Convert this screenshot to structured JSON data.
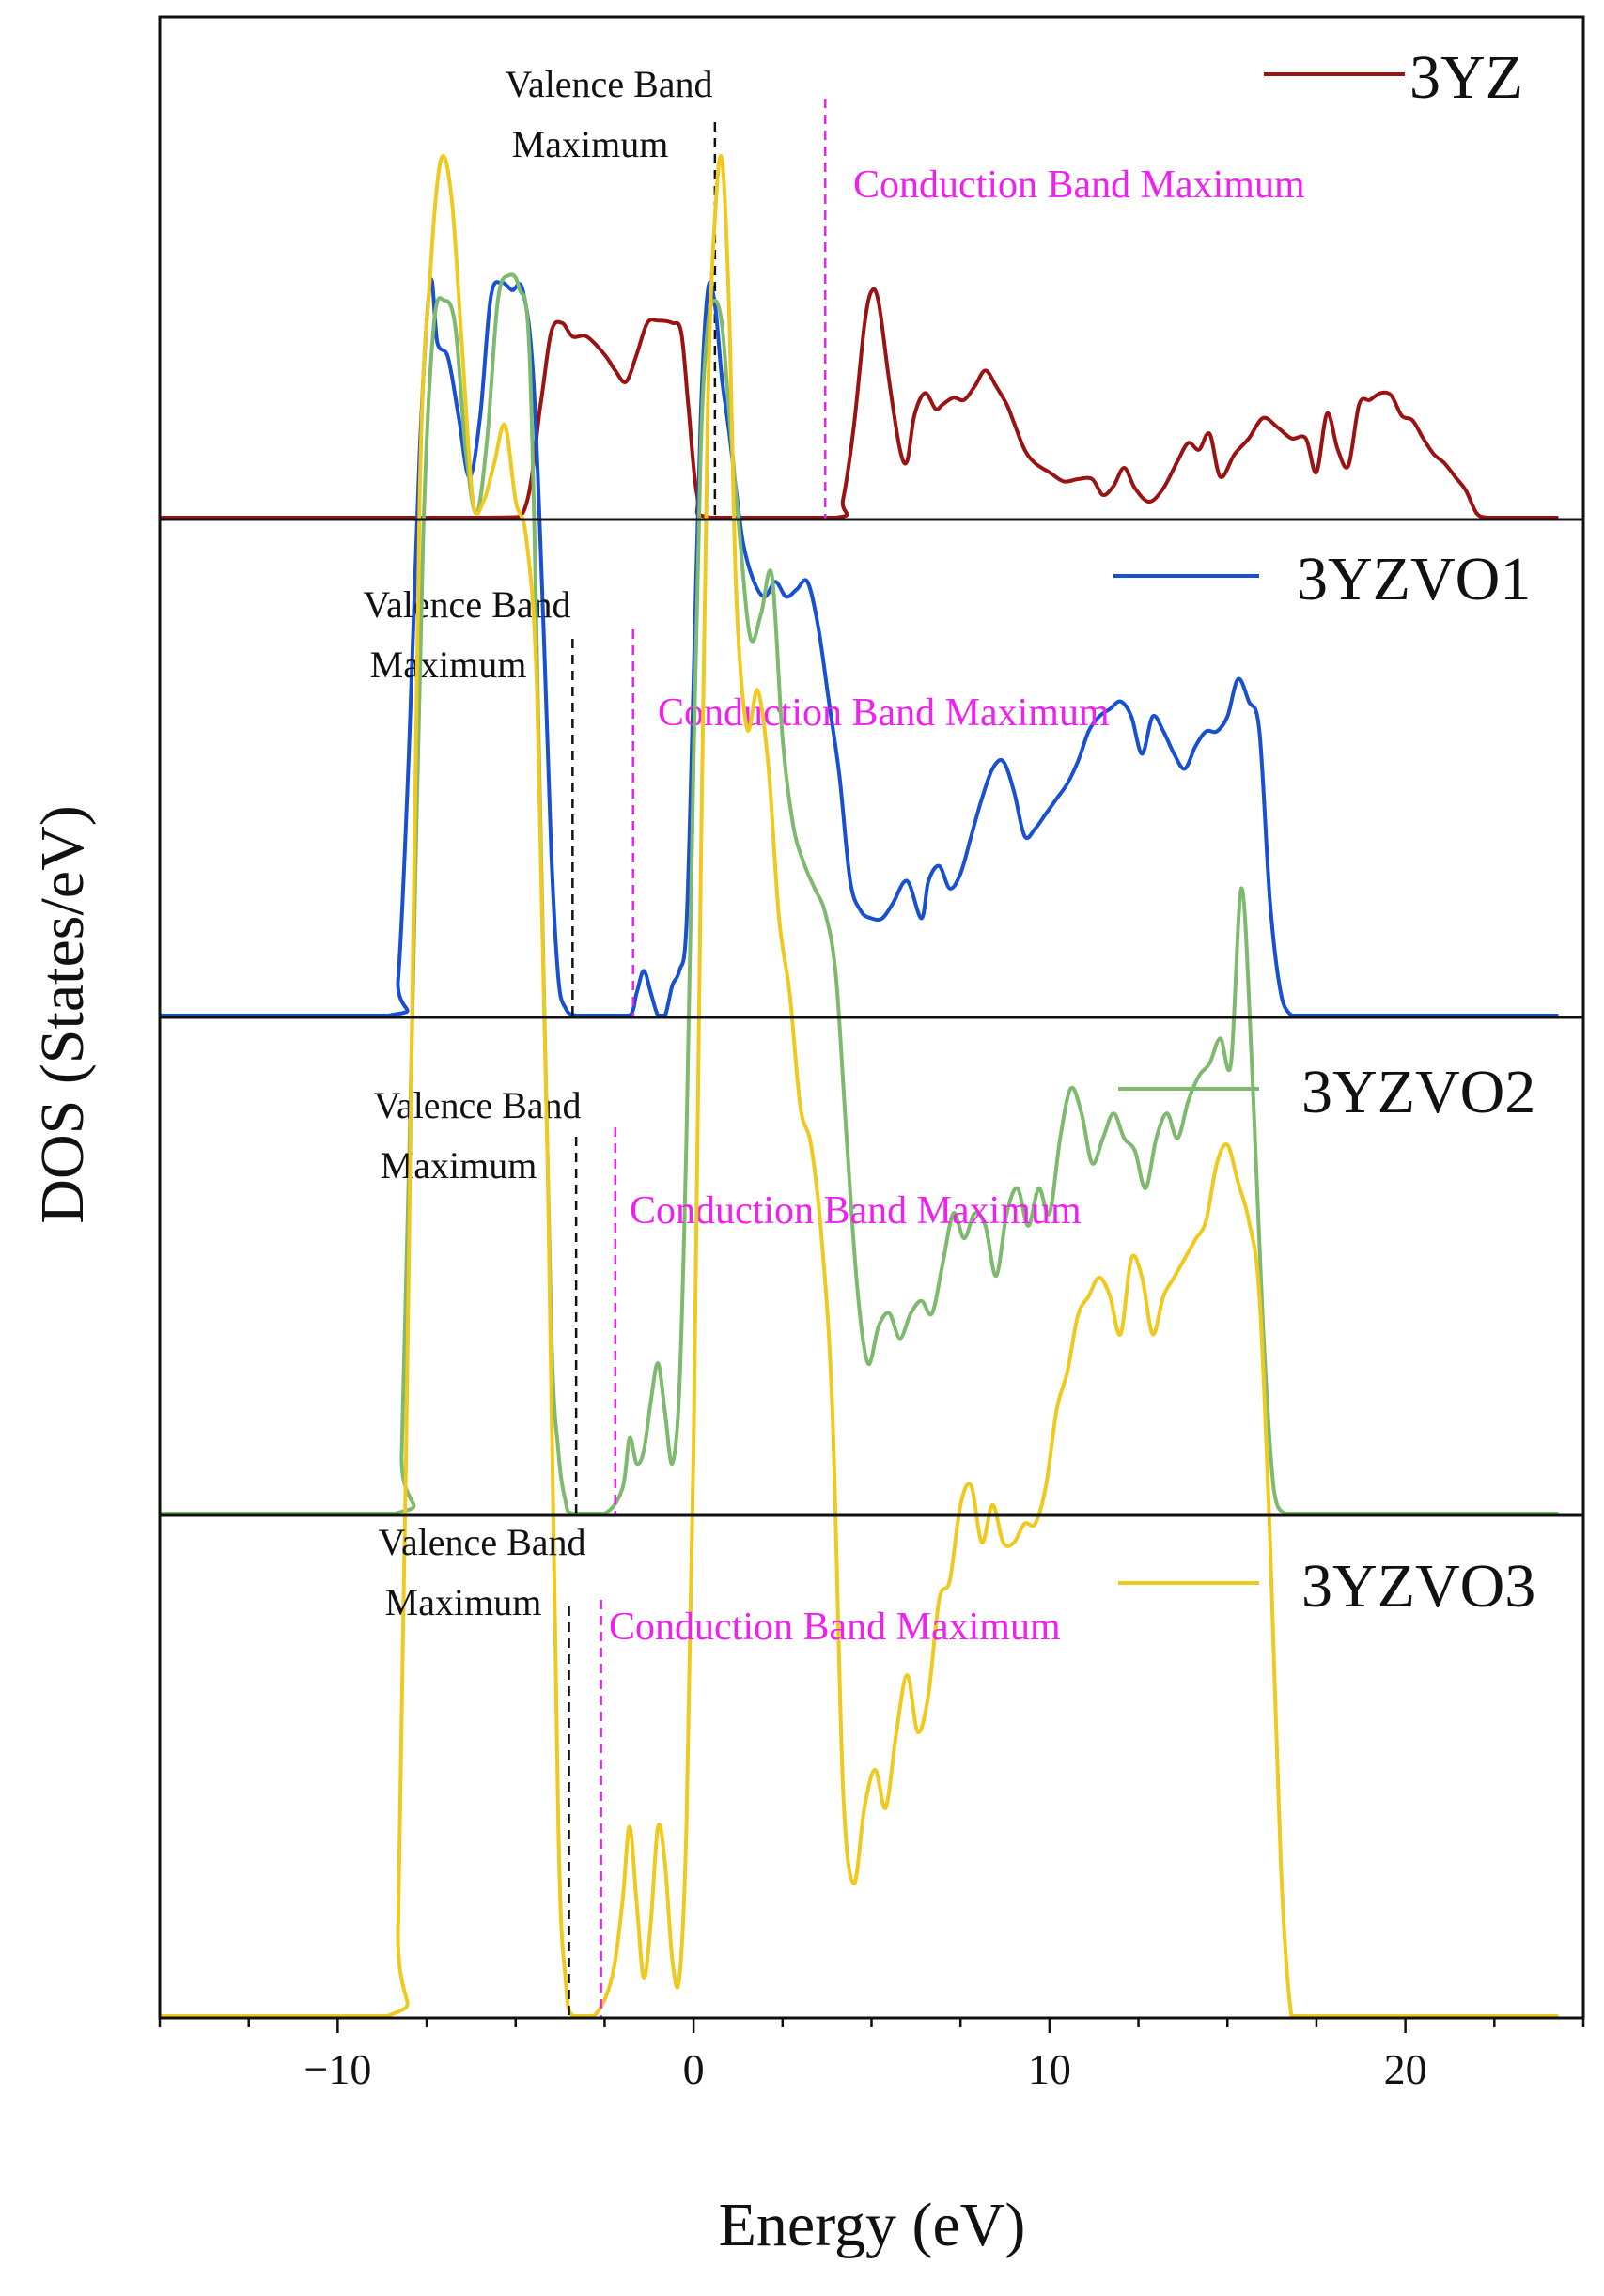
{
  "chart_data": {
    "type": "line",
    "xlabel": "Energy (eV)",
    "ylabel": "DOS (States/eV)",
    "xlim": [
      -15,
      25
    ],
    "xticks": [
      -10,
      0,
      10,
      20
    ],
    "xtick_labels": [
      "−10",
      "0",
      "10",
      "20"
    ],
    "yticks_shown": false,
    "panels": [
      {
        "name": "3YZ",
        "color": "#9b1212",
        "vbm_label_line1": "Valence Band",
        "vbm_label_line2": "Maximum",
        "cbm_label": "Conduction Band Maximum",
        "cbm_color": "#ee22ee",
        "vbm_energy": 0.6,
        "cbm_energy": 3.7,
        "x": [
          -15,
          -6,
          -4.8,
          -4.3,
          -4.0,
          -3.7,
          -3.4,
          -3.0,
          -2.5,
          -2.2,
          -1.9,
          -1.6,
          -1.3,
          -1.0,
          -0.6,
          -0.35,
          -0.15,
          0.1,
          0.5,
          4.0,
          4.2,
          4.5,
          4.8,
          5.0,
          5.2,
          5.5,
          5.8,
          6.0,
          6.2,
          6.5,
          6.8,
          7.0,
          7.3,
          7.6,
          7.9,
          8.2,
          8.5,
          8.8,
          9.0,
          9.3,
          9.6,
          10.0,
          10.4,
          10.8,
          11.2,
          11.5,
          11.8,
          12.1,
          12.4,
          12.8,
          13.2,
          13.6,
          13.9,
          14.2,
          14.5,
          14.8,
          15.2,
          15.6,
          16.0,
          16.4,
          16.8,
          17.2,
          17.5,
          17.8,
          18.1,
          18.4,
          18.7,
          19.0,
          19.3,
          19.6,
          19.9,
          20.2,
          20.5,
          20.8,
          21.1,
          21.4,
          21.7,
          22.0,
          22.3,
          22.6,
          23.0,
          24.3
        ],
        "y": [
          0,
          0,
          0.02,
          0.5,
          0.82,
          0.86,
          0.8,
          0.8,
          0.72,
          0.65,
          0.6,
          0.72,
          0.86,
          0.87,
          0.86,
          0.82,
          0.5,
          0.1,
          0,
          0,
          0.08,
          0.4,
          0.85,
          1.0,
          0.95,
          0.6,
          0.3,
          0.25,
          0.45,
          0.55,
          0.48,
          0.5,
          0.53,
          0.52,
          0.58,
          0.65,
          0.58,
          0.5,
          0.42,
          0.3,
          0.24,
          0.2,
          0.16,
          0.17,
          0.17,
          0.1,
          0.14,
          0.22,
          0.13,
          0.07,
          0.13,
          0.25,
          0.33,
          0.3,
          0.37,
          0.18,
          0.28,
          0.35,
          0.44,
          0.4,
          0.35,
          0.35,
          0.2,
          0.46,
          0.3,
          0.23,
          0.5,
          0.52,
          0.55,
          0.54,
          0.45,
          0.43,
          0.35,
          0.28,
          0.24,
          0.18,
          0.12,
          0.02,
          0,
          0,
          0,
          0
        ],
        "y_max": 1.0
      },
      {
        "name": "3YZVO1",
        "color": "#1750d0",
        "vbm_label_line1": "Valence Band",
        "vbm_label_line2": "Maximum",
        "cbm_label": "Conduction Band Maximum",
        "cbm_color": "#ee22ee",
        "vbm_energy": -3.4,
        "cbm_energy": -1.7,
        "x": [
          -15,
          -8.6,
          -8.3,
          -8.0,
          -7.7,
          -7.4,
          -7.2,
          -6.9,
          -6.6,
          -6.3,
          -6.0,
          -5.7,
          -5.4,
          -5.1,
          -4.8,
          -4.5,
          -4.2,
          -4.0,
          -3.8,
          -3.6,
          -3.3,
          -2.5,
          -1.8,
          -1.6,
          -1.4,
          -1.2,
          -1.0,
          -0.8,
          -0.6,
          -0.4,
          -0.2,
          0.0,
          0.2,
          0.4,
          0.6,
          0.8,
          1.0,
          1.2,
          1.4,
          1.7,
          2.0,
          2.3,
          2.6,
          2.9,
          3.2,
          3.5,
          3.8,
          4.1,
          4.4,
          4.7,
          5.0,
          5.3,
          5.6,
          6.0,
          6.4,
          6.6,
          6.9,
          7.2,
          7.5,
          7.8,
          8.1,
          8.4,
          8.7,
          9.0,
          9.3,
          9.6,
          9.9,
          10.2,
          10.5,
          10.8,
          11.1,
          11.4,
          11.7,
          12.0,
          12.3,
          12.6,
          12.9,
          13.2,
          13.5,
          13.8,
          14.1,
          14.4,
          14.7,
          15.0,
          15.3,
          15.6,
          15.9,
          16.2,
          16.5,
          16.8,
          17.0,
          17.3,
          17.6,
          17.9,
          18.2,
          24.3
        ],
        "y": [
          0,
          0,
          0.05,
          0.35,
          0.75,
          0.98,
          0.9,
          0.88,
          0.8,
          0.72,
          0.8,
          0.96,
          0.98,
          0.97,
          0.97,
          0.85,
          0.5,
          0.22,
          0.05,
          0.01,
          0,
          0,
          0,
          0.03,
          0.06,
          0.03,
          0,
          0,
          0.04,
          0.06,
          0.12,
          0.45,
          0.8,
          0.97,
          0.95,
          0.85,
          0.78,
          0.7,
          0.63,
          0.58,
          0.56,
          0.58,
          0.56,
          0.57,
          0.58,
          0.52,
          0.42,
          0.32,
          0.18,
          0.14,
          0.13,
          0.13,
          0.15,
          0.18,
          0.13,
          0.18,
          0.2,
          0.17,
          0.19,
          0.24,
          0.29,
          0.33,
          0.34,
          0.3,
          0.24,
          0.25,
          0.27,
          0.29,
          0.31,
          0.34,
          0.38,
          0.4,
          0.41,
          0.42,
          0.4,
          0.35,
          0.4,
          0.38,
          0.35,
          0.33,
          0.36,
          0.38,
          0.38,
          0.4,
          0.45,
          0.42,
          0.38,
          0.15,
          0.03,
          0,
          0,
          0,
          0,
          0,
          0,
          0
        ],
        "y_max": 1.0
      },
      {
        "name": "3YZVO2",
        "color": "#7dba6e",
        "vbm_label_line1": "Valence Band",
        "vbm_label_line2": "Maximum",
        "cbm_label": "Conduction Band Maximum",
        "cbm_color": "#ee22ee",
        "vbm_energy": -3.3,
        "cbm_energy": -2.2,
        "x": [
          -15,
          -8.4,
          -8.2,
          -7.9,
          -7.6,
          -7.3,
          -7.0,
          -6.7,
          -6.4,
          -6.1,
          -5.8,
          -5.5,
          -5.2,
          -4.9,
          -4.6,
          -4.3,
          -4.0,
          -3.8,
          -3.6,
          -3.4,
          -2.5,
          -2.0,
          -1.8,
          -1.6,
          -1.4,
          -1.2,
          -1.0,
          -0.8,
          -0.6,
          -0.4,
          -0.2,
          0.0,
          0.2,
          0.4,
          0.6,
          0.8,
          1.0,
          1.3,
          1.6,
          1.9,
          2.2,
          2.5,
          2.8,
          3.1,
          3.4,
          3.7,
          4.0,
          4.3,
          4.6,
          4.9,
          5.2,
          5.5,
          5.8,
          6.1,
          6.4,
          6.7,
          7.0,
          7.3,
          7.6,
          7.9,
          8.2,
          8.5,
          8.8,
          9.1,
          9.4,
          9.7,
          10.0,
          10.3,
          10.6,
          10.9,
          11.2,
          11.5,
          11.8,
          12.1,
          12.4,
          12.7,
          13.0,
          13.3,
          13.6,
          13.9,
          14.2,
          14.5,
          14.8,
          15.1,
          15.4,
          15.7,
          16.0,
          16.3,
          16.6,
          16.9,
          17.2,
          17.5,
          24.3
        ],
        "y": [
          0,
          0,
          0.05,
          0.4,
          0.78,
          0.95,
          0.97,
          0.95,
          0.85,
          0.8,
          0.86,
          0.97,
          0.99,
          0.98,
          0.92,
          0.55,
          0.15,
          0.05,
          0.01,
          0,
          0,
          0.02,
          0.06,
          0.04,
          0.05,
          0.09,
          0.12,
          0.08,
          0.04,
          0.1,
          0.3,
          0.6,
          0.85,
          0.95,
          0.97,
          0.95,
          0.88,
          0.78,
          0.7,
          0.72,
          0.75,
          0.62,
          0.55,
          0.52,
          0.5,
          0.48,
          0.43,
          0.3,
          0.18,
          0.12,
          0.15,
          0.16,
          0.14,
          0.16,
          0.17,
          0.16,
          0.2,
          0.24,
          0.22,
          0.24,
          0.23,
          0.19,
          0.24,
          0.26,
          0.23,
          0.26,
          0.24,
          0.3,
          0.34,
          0.32,
          0.28,
          0.3,
          0.32,
          0.3,
          0.29,
          0.26,
          0.3,
          0.32,
          0.3,
          0.33,
          0.35,
          0.36,
          0.38,
          0.36,
          0.5,
          0.35,
          0.15,
          0.02,
          0,
          0,
          0,
          0,
          0
        ],
        "y_max": 1.0
      },
      {
        "name": "3YZVO3",
        "color": "#f0c91f",
        "vbm_label_line1": "Valence Band",
        "vbm_label_line2": "Maximum",
        "cbm_label": "Conduction Band Maximum",
        "cbm_color": "#ee22ee",
        "vbm_energy": -3.5,
        "cbm_energy": -2.6,
        "x": [
          -15,
          -8.6,
          -8.3,
          -8.0,
          -7.7,
          -7.4,
          -7.1,
          -6.8,
          -6.5,
          -6.2,
          -5.9,
          -5.6,
          -5.3,
          -5.0,
          -4.7,
          -4.4,
          -4.1,
          -3.8,
          -3.6,
          -3.4,
          -2.8,
          -2.3,
          -2.0,
          -1.8,
          -1.6,
          -1.4,
          -1.2,
          -1.0,
          -0.8,
          -0.6,
          -0.4,
          -0.2,
          0.0,
          0.2,
          0.4,
          0.6,
          0.8,
          1.0,
          1.2,
          1.5,
          1.8,
          2.1,
          2.4,
          2.7,
          3.0,
          3.3,
          3.6,
          3.9,
          4.2,
          4.5,
          4.8,
          5.1,
          5.4,
          5.7,
          6.0,
          6.3,
          6.6,
          6.9,
          7.2,
          7.5,
          7.8,
          8.1,
          8.4,
          8.7,
          9.0,
          9.3,
          9.6,
          9.9,
          10.2,
          10.5,
          10.8,
          11.1,
          11.4,
          11.7,
          12.0,
          12.3,
          12.6,
          12.9,
          13.2,
          13.5,
          13.8,
          14.1,
          14.4,
          14.7,
          15.0,
          15.3,
          15.6,
          15.9,
          16.2,
          16.5,
          16.8,
          17.1,
          17.4,
          24.3
        ],
        "y": [
          0,
          0,
          0.05,
          0.4,
          0.8,
          0.92,
          0.98,
          0.96,
          0.88,
          0.8,
          0.8,
          0.82,
          0.84,
          0.8,
          0.78,
          0.7,
          0.45,
          0.1,
          0.02,
          0,
          0,
          0.02,
          0.06,
          0.1,
          0.06,
          0.02,
          0.05,
          0.1,
          0.08,
          0.03,
          0.02,
          0.1,
          0.3,
          0.6,
          0.85,
          0.95,
          0.98,
          0.9,
          0.75,
          0.68,
          0.7,
          0.66,
          0.58,
          0.54,
          0.48,
          0.46,
          0.41,
          0.32,
          0.12,
          0.07,
          0.11,
          0.13,
          0.11,
          0.15,
          0.18,
          0.15,
          0.17,
          0.22,
          0.23,
          0.27,
          0.28,
          0.25,
          0.27,
          0.25,
          0.25,
          0.26,
          0.26,
          0.28,
          0.32,
          0.34,
          0.37,
          0.38,
          0.39,
          0.38,
          0.36,
          0.4,
          0.39,
          0.36,
          0.38,
          0.39,
          0.4,
          0.41,
          0.42,
          0.45,
          0.46,
          0.44,
          0.42,
          0.38,
          0.25,
          0.08,
          0,
          0,
          0,
          0
        ],
        "y_max": 1.0
      }
    ]
  }
}
